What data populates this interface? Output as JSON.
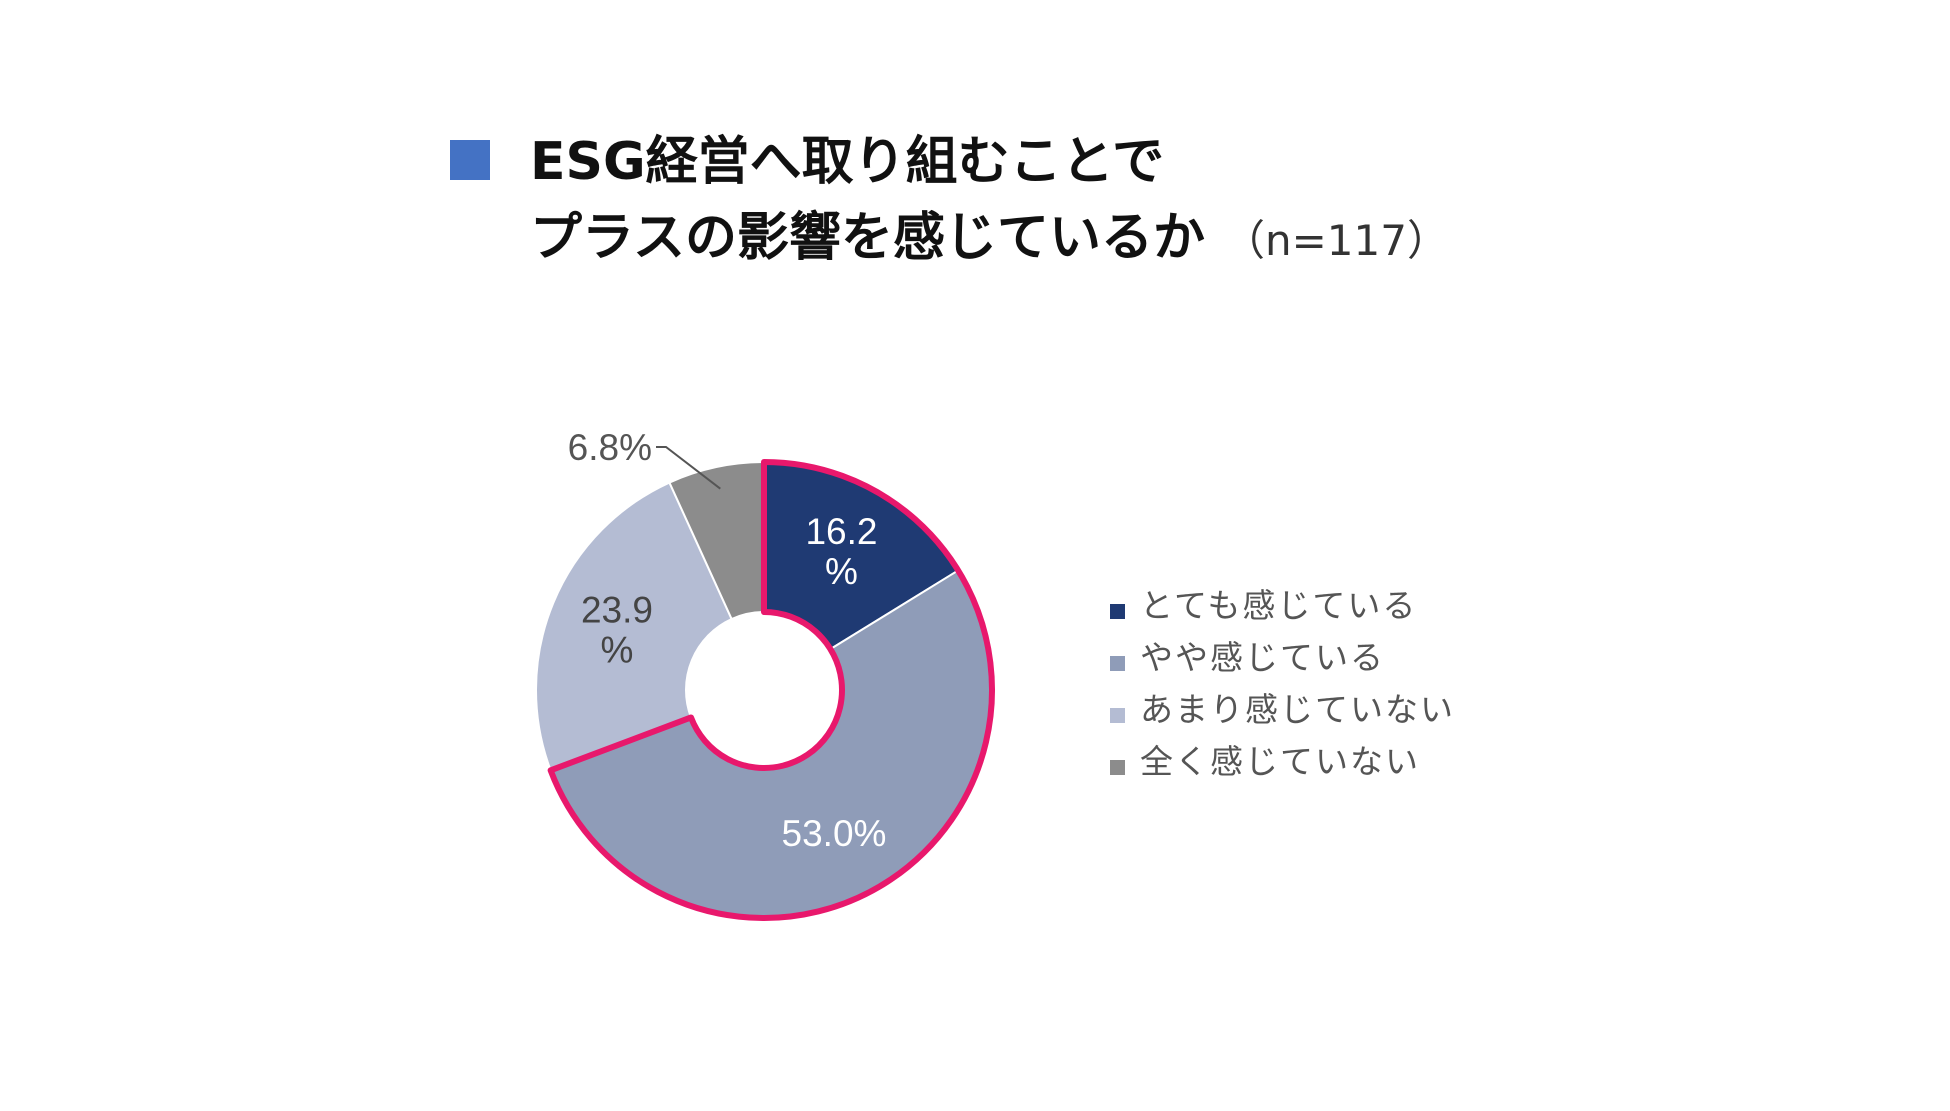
{
  "title": {
    "line1": "ESG経営へ取り組むことで",
    "line2": "プラスの影響を感じているか",
    "note": "（n=117）"
  },
  "colors": {
    "title_marker": "#4472c4",
    "highlight_outline": "#e8186c"
  },
  "chart_data": {
    "type": "pie",
    "variant": "donut",
    "unit": "%",
    "start_angle_deg": 0,
    "direction": "clockwise",
    "slices": [
      {
        "name": "とても感じている",
        "value": 16.2,
        "label": [
          "16.2",
          "%"
        ],
        "color": "#1f3a73",
        "label_color": "#ffffff"
      },
      {
        "name": "やや感じている",
        "value": 53.0,
        "label": [
          "53.0%"
        ],
        "color": "#8f9cb8",
        "label_color": "#ffffff"
      },
      {
        "name": "あまり感じていない",
        "value": 23.9,
        "label": [
          "23.9",
          "%"
        ],
        "color": "#b4bcd3",
        "label_color": "#444444"
      },
      {
        "name": "全く感じていない",
        "value": 6.8,
        "label": [
          "6.8%"
        ],
        "color": "#8c8c8c",
        "label_color": "#555555",
        "label_outside": true
      }
    ],
    "highlighted_slices": [
      "とても感じている",
      "やや感じている"
    ],
    "legend_position": "right"
  }
}
